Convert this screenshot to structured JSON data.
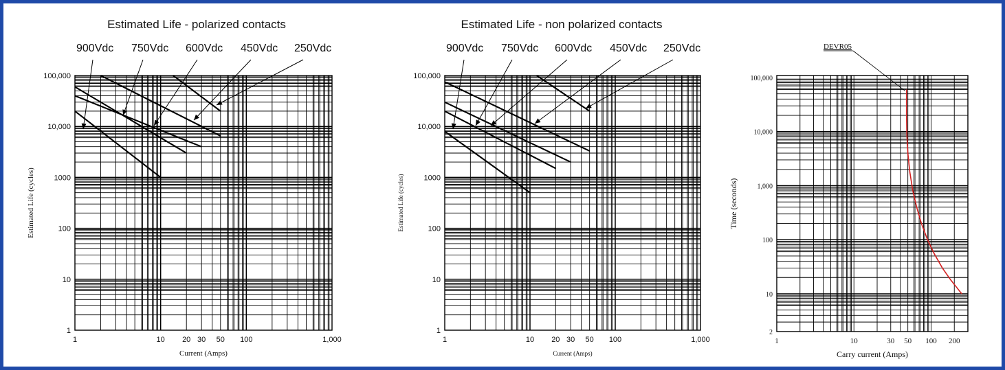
{
  "colors": {
    "border": "#1f4aa8",
    "grid": "#000000",
    "curve": "#d42020",
    "text": "#111111"
  },
  "chart_data": [
    {
      "type": "line",
      "title": "Estimated Life - polarized contacts",
      "xlabel": "Current (Amps)",
      "ylabel": "Estimated Life (cycles)",
      "xscale": "log",
      "yscale": "log",
      "xlim": [
        1,
        1000
      ],
      "ylim": [
        1,
        100000
      ],
      "grid": true,
      "xticks": [
        1,
        10,
        20,
        30,
        50,
        100,
        1000
      ],
      "xtick_labels": [
        "1",
        "10",
        "20",
        "30",
        "50",
        "100",
        "1,000"
      ],
      "yticks": [
        1,
        10,
        100,
        1000,
        10000,
        100000
      ],
      "ytick_labels": [
        "1",
        "10",
        "100",
        "1000",
        "10,000",
        "100,000"
      ],
      "series": [
        {
          "name": "900Vdc",
          "x": [
            1,
            10
          ],
          "y": [
            20000,
            1000
          ]
        },
        {
          "name": "750Vdc",
          "x": [
            1,
            30
          ],
          "y": [
            40000,
            4000
          ]
        },
        {
          "name": "600Vdc",
          "x": [
            1,
            20
          ],
          "y": [
            60000,
            3000
          ]
        },
        {
          "name": "450Vdc",
          "x": [
            2,
            50
          ],
          "y": [
            100000,
            6500
          ]
        },
        {
          "name": "250Vdc",
          "x": [
            14,
            50
          ],
          "y": [
            100000,
            20000
          ]
        }
      ]
    },
    {
      "type": "line",
      "title": "Estimated Life - non polarized contacts",
      "xlabel": "Current (Amps)",
      "ylabel": "Estimated Life (cycles)",
      "xscale": "log",
      "yscale": "log",
      "xlim": [
        1,
        1000
      ],
      "ylim": [
        1,
        100000
      ],
      "grid": true,
      "xticks": [
        1,
        10,
        20,
        30,
        50,
        100,
        1000
      ],
      "xtick_labels": [
        "1",
        "10",
        "20",
        "30",
        "50",
        "100",
        "1,000"
      ],
      "yticks": [
        1,
        10,
        100,
        1000,
        10000,
        100000
      ],
      "ytick_labels": [
        "1",
        "10",
        "100",
        "1000",
        "10,000",
        "100,000"
      ],
      "series": [
        {
          "name": "900Vdc",
          "x": [
            1,
            10
          ],
          "y": [
            8000,
            500
          ]
        },
        {
          "name": "750Vdc",
          "x": [
            1,
            20
          ],
          "y": [
            20000,
            1500
          ]
        },
        {
          "name": "600Vdc",
          "x": [
            1,
            30
          ],
          "y": [
            30000,
            2000
          ]
        },
        {
          "name": "450Vdc",
          "x": [
            1,
            50
          ],
          "y": [
            75000,
            3300
          ]
        },
        {
          "name": "250Vdc",
          "x": [
            12,
            50
          ],
          "y": [
            100000,
            20000
          ]
        }
      ]
    },
    {
      "type": "line",
      "title": "",
      "xlabel": "Carry current (Amps)",
      "ylabel": "Time (seconds)",
      "xscale": "log",
      "yscale": "log",
      "xlim": [
        1,
        300
      ],
      "ylim": [
        2,
        100000
      ],
      "grid": true,
      "xticks": [
        1,
        10,
        30,
        50,
        100,
        200
      ],
      "xtick_labels": [
        "1",
        "10",
        "30",
        "50",
        "100",
        "200"
      ],
      "yticks": [
        2,
        10,
        100,
        1000,
        10000,
        100000
      ],
      "ytick_labels": [
        "2",
        "10",
        "100",
        "1,000",
        "10,000",
        "100,000"
      ],
      "series": [
        {
          "name": "DEVR05",
          "x": [
            48,
            48,
            48.5,
            50,
            53,
            58,
            65,
            75,
            90,
            110,
            140,
            180,
            250
          ],
          "y": [
            60000,
            20000,
            9000,
            4000,
            1800,
            800,
            400,
            200,
            100,
            55,
            30,
            18,
            10
          ]
        }
      ]
    }
  ]
}
